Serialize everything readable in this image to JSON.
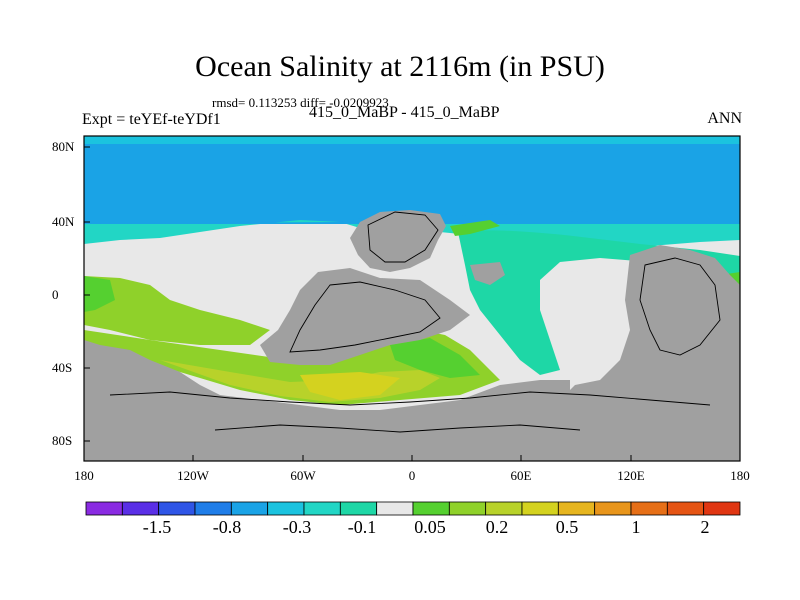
{
  "title": "Ocean Salinity at 2116m (in PSU)",
  "subtitle": "rmsd= 0.113253 diff= -0.0209923",
  "left_label": "Expt = teYEf-teYDf1",
  "center_label": "415_0_MaBP - 415_0_MaBP",
  "right_label": "ANN",
  "x_ticks": [
    "180",
    "120W",
    "60W",
    "0",
    "60E",
    "120E",
    "180"
  ],
  "y_ticks": [
    "80N",
    "40N",
    "0",
    "40S",
    "80S"
  ],
  "colorbar": {
    "labels": [
      "-1.5",
      "-0.8",
      "-0.3",
      "-0.1",
      "0.05",
      "0.2",
      "0.5",
      "1",
      "2"
    ],
    "colors": [
      "#8a2be2",
      "#5a2fe6",
      "#2f55e6",
      "#1f7de8",
      "#1aa3e6",
      "#1bc3df",
      "#22d6c5",
      "#1ed7a6",
      "#e8e8e8",
      "#55d030",
      "#8fd12a",
      "#b8d22a",
      "#d4d21f",
      "#e6b51f",
      "#e8951b",
      "#e66f17",
      "#e55414",
      "#e03612"
    ]
  },
  "colors": {
    "land": "#a0a0a0",
    "neutral": "#e8e8e8",
    "fresh_high": "#1aa3e6",
    "fresh_mid": "#22d6c5",
    "fresh_low": "#1ed7a6",
    "salty_low": "#55d030",
    "salty_mid": "#8fd12a",
    "salty_high": "#c8d21e"
  }
}
